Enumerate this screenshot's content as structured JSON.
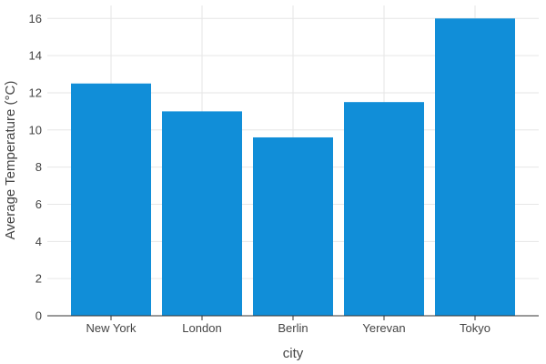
{
  "chart_data": {
    "type": "bar",
    "categories": [
      "New York",
      "London",
      "Berlin",
      "Yerevan",
      "Tokyo"
    ],
    "values": [
      12.5,
      11.0,
      9.6,
      11.5,
      16.0
    ],
    "title": "",
    "xlabel": "city",
    "ylabel": "Average Temperature (°C)",
    "ylim": [
      0,
      16.7
    ],
    "yticks": [
      0,
      2,
      4,
      6,
      8,
      10,
      12,
      14,
      16
    ],
    "grid": true,
    "bar_color": "#118ed8"
  }
}
